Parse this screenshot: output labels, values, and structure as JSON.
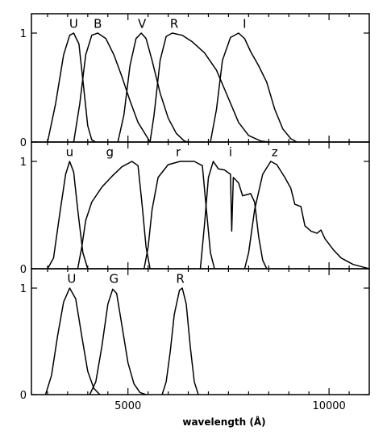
{
  "chart_data": {
    "type": "line",
    "title": "",
    "xlabel": "wavelength (Å)",
    "xlim": [
      2600,
      11000
    ],
    "x_ticks": [
      5000,
      10000
    ],
    "x_tick_labels": [
      "5000",
      "10000"
    ],
    "ylabel": "",
    "grid": false,
    "panels": [
      {
        "id": "panel-1",
        "ylim": [
          0,
          1.2
        ],
        "y_ticks": [
          0,
          1
        ],
        "y_tick_labels": [
          "0",
          "1"
        ],
        "series": [
          {
            "name": "U",
            "label_at": [
              3650,
              1.05
            ],
            "points": [
              [
                3000,
                0
              ],
              [
                3200,
                0.35
              ],
              [
                3400,
                0.8
              ],
              [
                3550,
                0.98
              ],
              [
                3650,
                1.0
              ],
              [
                3780,
                0.9
              ],
              [
                3900,
                0.5
              ],
              [
                4000,
                0.15
              ],
              [
                4100,
                0.02
              ],
              [
                4200,
                0
              ]
            ]
          },
          {
            "name": "B",
            "label_at": [
              4250,
              1.05
            ],
            "points": [
              [
                3650,
                0
              ],
              [
                3800,
                0.35
              ],
              [
                3950,
                0.8
              ],
              [
                4100,
                0.98
              ],
              [
                4250,
                1.0
              ],
              [
                4450,
                0.95
              ],
              [
                4650,
                0.8
              ],
              [
                4850,
                0.6
              ],
              [
                5050,
                0.38
              ],
              [
                5250,
                0.18
              ],
              [
                5450,
                0.06
              ],
              [
                5550,
                0
              ]
            ]
          },
          {
            "name": "V",
            "label_at": [
              5350,
              1.05
            ],
            "points": [
              [
                4750,
                0
              ],
              [
                4900,
                0.25
              ],
              [
                5050,
                0.7
              ],
              [
                5200,
                0.95
              ],
              [
                5330,
                1.0
              ],
              [
                5450,
                0.95
              ],
              [
                5600,
                0.75
              ],
              [
                5800,
                0.45
              ],
              [
                6000,
                0.22
              ],
              [
                6200,
                0.08
              ],
              [
                6400,
                0.01
              ],
              [
                6500,
                0
              ]
            ]
          },
          {
            "name": "R",
            "label_at": [
              6150,
              1.05
            ],
            "points": [
              [
                5550,
                0
              ],
              [
                5650,
                0.25
              ],
              [
                5800,
                0.75
              ],
              [
                5950,
                0.97
              ],
              [
                6100,
                1.0
              ],
              [
                6350,
                0.98
              ],
              [
                6600,
                0.92
              ],
              [
                6900,
                0.82
              ],
              [
                7200,
                0.66
              ],
              [
                7500,
                0.4
              ],
              [
                7750,
                0.18
              ],
              [
                8000,
                0.06
              ],
              [
                8300,
                0.01
              ],
              [
                8500,
                0
              ]
            ]
          },
          {
            "name": "I",
            "label_at": [
              7900,
              1.05
            ],
            "points": [
              [
                7050,
                0
              ],
              [
                7200,
                0.3
              ],
              [
                7350,
                0.75
              ],
              [
                7550,
                0.96
              ],
              [
                7750,
                1.0
              ],
              [
                7900,
                0.95
              ],
              [
                8050,
                0.83
              ],
              [
                8250,
                0.7
              ],
              [
                8450,
                0.55
              ],
              [
                8650,
                0.3
              ],
              [
                8850,
                0.12
              ],
              [
                9050,
                0.03
              ],
              [
                9200,
                0
              ]
            ]
          }
        ]
      },
      {
        "id": "panel-2",
        "ylim": [
          0,
          1.2
        ],
        "y_ticks": [
          0,
          1
        ],
        "y_tick_labels": [
          "0",
          "1"
        ],
        "series": [
          {
            "name": "u",
            "label_at": [
              3550,
              1.05
            ],
            "points": [
              [
                3000,
                0
              ],
              [
                3150,
                0.1
              ],
              [
                3300,
                0.5
              ],
              [
                3450,
                0.88
              ],
              [
                3550,
                1.0
              ],
              [
                3650,
                0.9
              ],
              [
                3750,
                0.55
              ],
              [
                3880,
                0.15
              ],
              [
                4000,
                0
              ]
            ]
          },
          {
            "name": "g",
            "label_at": [
              4550,
              1.05
            ],
            "points": [
              [
                3750,
                0
              ],
              [
                3850,
                0.2
              ],
              [
                3950,
                0.45
              ],
              [
                4100,
                0.62
              ],
              [
                4350,
                0.76
              ],
              [
                4600,
                0.86
              ],
              [
                4850,
                0.95
              ],
              [
                5100,
                1.0
              ],
              [
                5250,
                0.96
              ],
              [
                5350,
                0.6
              ],
              [
                5450,
                0.2
              ],
              [
                5550,
                0
              ]
            ]
          },
          {
            "name": "r",
            "label_at": [
              6250,
              1.05
            ],
            "points": [
              [
                5400,
                0
              ],
              [
                5500,
                0.2
              ],
              [
                5600,
                0.55
              ],
              [
                5750,
                0.85
              ],
              [
                6000,
                0.97
              ],
              [
                6300,
                1.0
              ],
              [
                6650,
                1.0
              ],
              [
                6850,
                0.96
              ],
              [
                6950,
                0.55
              ],
              [
                7050,
                0.15
              ],
              [
                7150,
                0
              ]
            ]
          },
          {
            "name": "i",
            "label_at": [
              7550,
              1.05
            ],
            "points": [
              [
                6800,
                0
              ],
              [
                6900,
                0.4
              ],
              [
                7000,
                0.85
              ],
              [
                7120,
                1.0
              ],
              [
                7250,
                0.93
              ],
              [
                7400,
                0.92
              ],
              [
                7550,
                0.88
              ],
              [
                7580,
                0.35
              ],
              [
                7620,
                0.85
              ],
              [
                7750,
                0.8
              ],
              [
                7850,
                0.68
              ],
              [
                8050,
                0.7
              ],
              [
                8150,
                0.62
              ],
              [
                8250,
                0.3
              ],
              [
                8350,
                0.08
              ],
              [
                8450,
                0
              ]
            ]
          },
          {
            "name": "z",
            "label_at": [
              8650,
              1.05
            ],
            "points": [
              [
                7900,
                0
              ],
              [
                8000,
                0.15
              ],
              [
                8150,
                0.55
              ],
              [
                8350,
                0.88
              ],
              [
                8550,
                1.0
              ],
              [
                8700,
                0.97
              ],
              [
                8900,
                0.85
              ],
              [
                9050,
                0.75
              ],
              [
                9150,
                0.6
              ],
              [
                9300,
                0.58
              ],
              [
                9400,
                0.4
              ],
              [
                9550,
                0.35
              ],
              [
                9700,
                0.33
              ],
              [
                9800,
                0.36
              ],
              [
                9900,
                0.28
              ],
              [
                10100,
                0.18
              ],
              [
                10300,
                0.1
              ],
              [
                10600,
                0.04
              ],
              [
                10900,
                0.01
              ],
              [
                11000,
                0
              ]
            ]
          }
        ]
      },
      {
        "id": "panel-3",
        "ylim": [
          0,
          1.2
        ],
        "y_ticks": [
          0,
          1
        ],
        "y_tick_labels": [
          "0",
          "1"
        ],
        "series": [
          {
            "name": "U",
            "label_at": [
              3600,
              1.05
            ],
            "points": [
              [
                2950,
                0
              ],
              [
                3100,
                0.18
              ],
              [
                3250,
                0.55
              ],
              [
                3400,
                0.87
              ],
              [
                3550,
                1.0
              ],
              [
                3700,
                0.9
              ],
              [
                3850,
                0.55
              ],
              [
                4000,
                0.22
              ],
              [
                4150,
                0.06
              ],
              [
                4300,
                0
              ]
            ]
          },
          {
            "name": "G",
            "label_at": [
              4650,
              1.05
            ],
            "points": [
              [
                4050,
                0
              ],
              [
                4200,
                0.12
              ],
              [
                4350,
                0.45
              ],
              [
                4500,
                0.85
              ],
              [
                4620,
                0.99
              ],
              [
                4720,
                0.95
              ],
              [
                4850,
                0.65
              ],
              [
                5000,
                0.3
              ],
              [
                5150,
                0.1
              ],
              [
                5300,
                0.02
              ],
              [
                5450,
                0
              ]
            ]
          },
          {
            "name": "R",
            "label_at": [
              6300,
              1.05
            ],
            "points": [
              [
                5850,
                0
              ],
              [
                5950,
                0.12
              ],
              [
                6050,
                0.4
              ],
              [
                6150,
                0.75
              ],
              [
                6280,
                0.98
              ],
              [
                6350,
                1.0
              ],
              [
                6450,
                0.85
              ],
              [
                6550,
                0.45
              ],
              [
                6650,
                0.12
              ],
              [
                6750,
                0
              ]
            ]
          }
        ]
      }
    ]
  }
}
